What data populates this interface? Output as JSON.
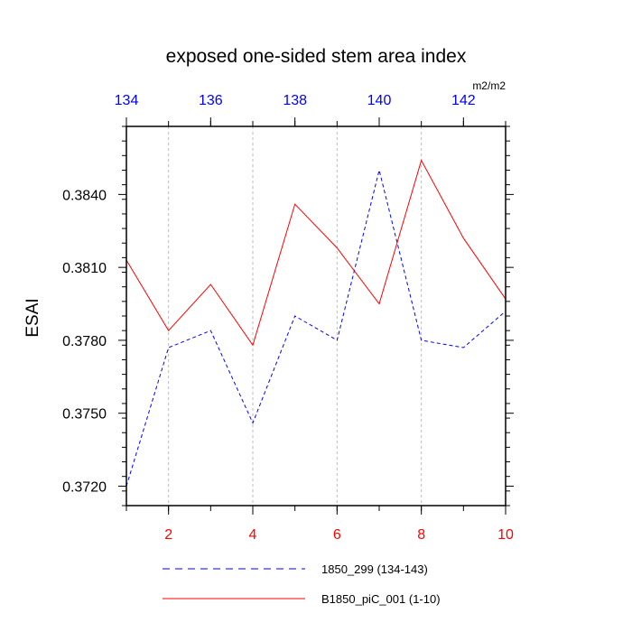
{
  "chart_data": {
    "type": "line",
    "title": "exposed one-sided stem area index",
    "ylabel": "ESAI",
    "units": "m2/m2",
    "ylim": [
      0.3712,
      0.3868
    ],
    "yticks": [
      0.372,
      0.375,
      0.378,
      0.381,
      0.384
    ],
    "ytick_labels": [
      "0.3720",
      "0.3750",
      "0.3780",
      "0.3810",
      "0.3840"
    ],
    "bottom_axis": {
      "range": [
        1,
        10
      ],
      "major_ticks": [
        2,
        4,
        6,
        8,
        10
      ],
      "tick_labels": [
        "2",
        "4",
        "6",
        "8",
        "10"
      ],
      "color": "#ff0000"
    },
    "top_axis": {
      "range": [
        134,
        143
      ],
      "major_ticks": [
        134,
        136,
        138,
        140,
        142
      ],
      "tick_labels": [
        "134",
        "136",
        "138",
        "140",
        "142"
      ],
      "color": "#0000ff"
    },
    "gridlines_x": [
      2,
      4,
      6,
      8
    ],
    "series": [
      {
        "name": "1850_299 (134-143)",
        "axis": "top",
        "color": "#0000ff",
        "dash": "dashed",
        "x": [
          134,
          135,
          136,
          137,
          138,
          139,
          140,
          141,
          142,
          143
        ],
        "values": [
          0.372,
          0.3777,
          0.3784,
          0.3746,
          0.379,
          0.378,
          0.385,
          0.378,
          0.3777,
          0.3792
        ]
      },
      {
        "name": "B1850_piC_001 (1-10)",
        "axis": "bottom",
        "color": "#ff0000",
        "dash": "solid",
        "x": [
          1,
          2,
          3,
          4,
          5,
          6,
          7,
          8,
          9,
          10
        ],
        "values": [
          0.3813,
          0.3784,
          0.3803,
          0.3778,
          0.3836,
          0.3818,
          0.3795,
          0.3854,
          0.3822,
          0.3797
        ]
      }
    ]
  }
}
